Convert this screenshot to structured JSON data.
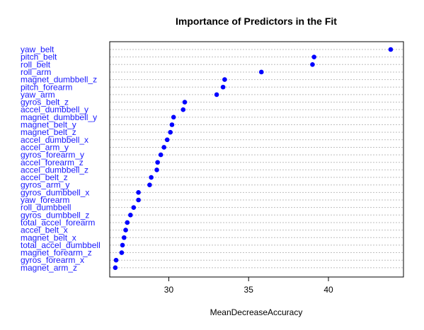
{
  "chart_data": {
    "type": "scatter",
    "title": "Importance of Predictors in the Fit",
    "xlabel": "MeanDecreaseAccuracy",
    "ylabel": "",
    "xlim": [
      26.3,
      44.7
    ],
    "xticks": [
      30,
      35,
      40
    ],
    "grid": "horizontal dotted",
    "point_color": "#0000ff",
    "label_color": "#1a1aff",
    "categories": [
      "yaw_belt",
      "pitch_belt",
      "roll_belt",
      "roll_arm",
      "magnet_dumbbell_z",
      "pitch_forearm",
      "yaw_arm",
      "gyros_belt_z",
      "accel_dumbbell_y",
      "magnet_dumbbell_y",
      "magnet_belt_y",
      "magnet_belt_z",
      "accel_dumbbell_x",
      "accel_arm_y",
      "gyros_forearm_y",
      "accel_forearm_z",
      "accel_dumbbell_z",
      "accel_belt_z",
      "gyros_arm_y",
      "gyros_dumbbell_x",
      "yaw_forearm",
      "roll_dumbbell",
      "gyros_dumbbell_z",
      "total_accel_forearm",
      "accel_belt_x",
      "magnet_belt_x",
      "total_accel_dumbbell",
      "magnet_forearm_z",
      "gyros_forearm_x",
      "magnet_arm_z"
    ],
    "values": [
      43.9,
      39.1,
      39.0,
      35.8,
      33.5,
      33.4,
      33.0,
      31.0,
      30.9,
      30.3,
      30.2,
      30.1,
      29.9,
      29.7,
      29.5,
      29.3,
      29.25,
      28.9,
      28.8,
      28.1,
      28.1,
      27.8,
      27.6,
      27.4,
      27.3,
      27.2,
      27.1,
      27.05,
      26.7,
      26.65
    ]
  }
}
